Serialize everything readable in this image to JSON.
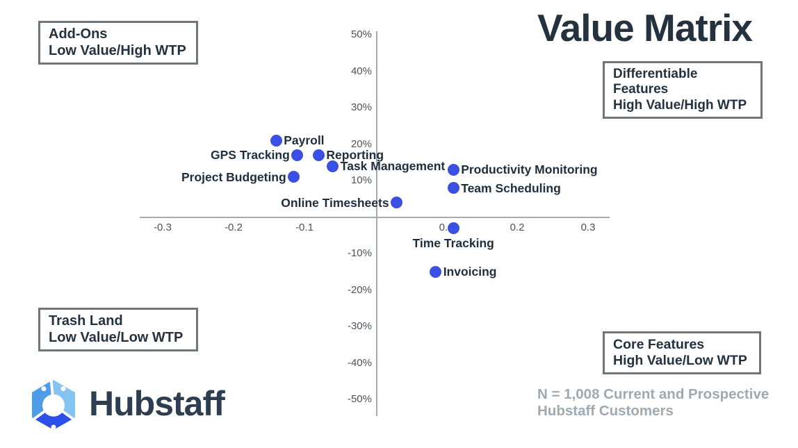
{
  "title": "Value Matrix",
  "quadrants": {
    "top_left": {
      "lines": [
        "Add-Ons",
        "Low Value/High WTP"
      ]
    },
    "top_right": {
      "lines": [
        "Differentiable",
        "Features",
        "High Value/High WTP"
      ]
    },
    "bottom_left": {
      "lines": [
        "Trash Land",
        "Low Value/Low WTP"
      ]
    },
    "bottom_right": {
      "lines": [
        "Core Features",
        "High Value/Low WTP"
      ]
    }
  },
  "note": {
    "lines": [
      "N = 1,008 Current and Prospective",
      "Hubstaff Customers"
    ]
  },
  "logo": {
    "wordmark": "Hubstaff"
  },
  "colors": {
    "dot": "#3b50e2",
    "title_text": "#243240",
    "label_text": "#1f2e3d",
    "axis_line": "#a6abb0",
    "tick_text": "#4a525a",
    "note_text": "#9fa9b2",
    "box_border": "#6e757b",
    "logo_top_left": "#4d9ce8",
    "logo_top_right": "#85c4f2",
    "logo_bottom": "#2c4fe8",
    "logo_wordmark": "#2d3e50"
  },
  "chart_data": {
    "type": "scatter",
    "title": "Value Matrix",
    "grid": false,
    "legend": false,
    "x_axis": {
      "ticks": [
        -0.3,
        -0.2,
        -0.1,
        0.1,
        0.2,
        0.3
      ],
      "range": [
        -0.33,
        0.33
      ],
      "label": ""
    },
    "y_axis": {
      "ticks_pct": [
        50,
        40,
        30,
        20,
        10,
        -10,
        -20,
        -30,
        -40,
        -50
      ],
      "range_pct": [
        -55,
        55
      ],
      "tick_suffix": "%",
      "label": ""
    },
    "points": [
      {
        "label": "Payroll",
        "x": -0.14,
        "y": 21,
        "label_side": "right"
      },
      {
        "label": "GPS Tracking",
        "x": -0.11,
        "y": 17,
        "label_side": "left"
      },
      {
        "label": "Reporting",
        "x": -0.08,
        "y": 17,
        "label_side": "right"
      },
      {
        "label": "Task Management",
        "x": -0.06,
        "y": 14,
        "label_side": "right"
      },
      {
        "label": "Project Budgeting",
        "x": -0.115,
        "y": 11,
        "label_side": "left"
      },
      {
        "label": "Online Timesheets",
        "x": 0.03,
        "y": 4,
        "label_side": "left"
      },
      {
        "label": "Productivity Monitoring",
        "x": 0.11,
        "y": 13,
        "label_side": "right"
      },
      {
        "label": "Team Scheduling",
        "x": 0.11,
        "y": 8,
        "label_side": "right"
      },
      {
        "label": "Time Tracking",
        "x": 0.11,
        "y": -3,
        "label_side": "below"
      },
      {
        "label": "Invoicing",
        "x": 0.085,
        "y": -15,
        "label_side": "right"
      }
    ]
  }
}
